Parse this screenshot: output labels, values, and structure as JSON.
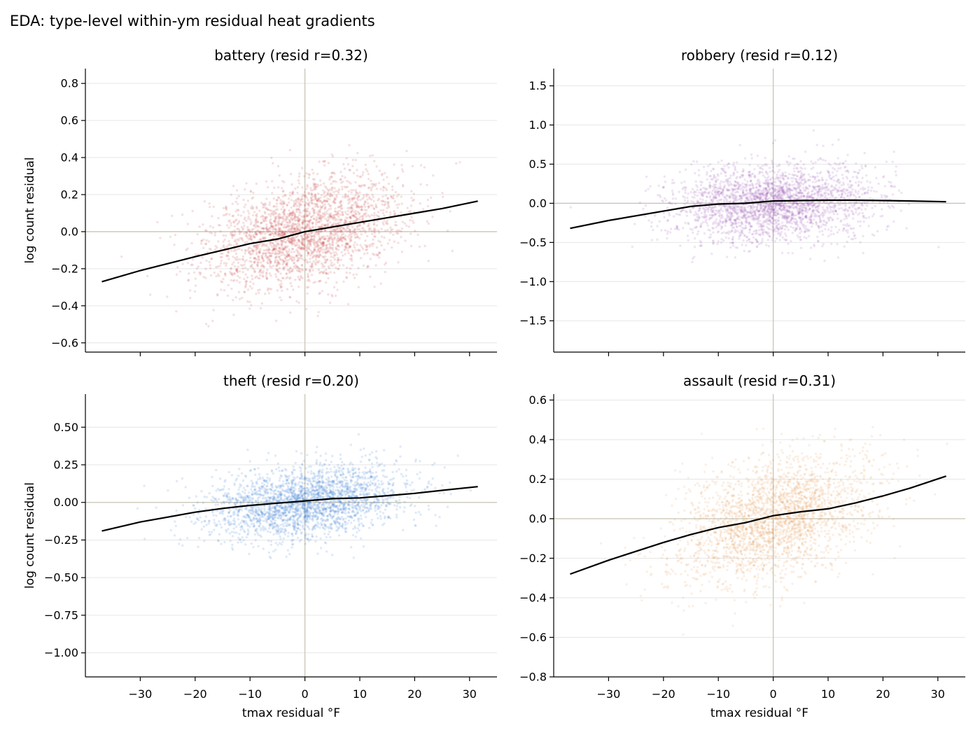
{
  "title": "EDA: type-level within-ym residual heat gradients",
  "colors": {
    "battery": "#c94040",
    "robbery": "#9b59b6",
    "theft": "#3a7bd5",
    "assault": "#e89a5a",
    "trend": "#000000",
    "crosshair": "#c8c4b4",
    "grid": "#e6e6e6"
  },
  "chart_data": [
    {
      "type": "scatter",
      "title": "battery (resid r=0.32)",
      "xlabel": "",
      "ylabel": "log count residual",
      "xlim": [
        -40,
        35
      ],
      "ylim": [
        -0.65,
        0.88
      ],
      "xticks": [
        -30,
        -20,
        -10,
        0,
        10,
        20,
        30
      ],
      "xtick_labels_shown": false,
      "yticks": [
        -0.6,
        -0.4,
        -0.2,
        0.0,
        0.2,
        0.4,
        0.6,
        0.8
      ],
      "ytick_labels": [
        "−0.6",
        "−0.4",
        "−0.2",
        "0.0",
        "0.2",
        "0.4",
        "0.6",
        "0.8"
      ],
      "grid": "y",
      "points_summary": {
        "n": 2600,
        "x_mean": 0,
        "x_sd": 9,
        "slope": 0.0062,
        "y_sd": 0.14
      },
      "trend_line": {
        "x": [
          -37,
          -30,
          -20,
          -15,
          -10,
          -5,
          0,
          5,
          10,
          15,
          20,
          25,
          31.5
        ],
        "y": [
          -0.27,
          -0.21,
          -0.135,
          -0.1,
          -0.065,
          -0.04,
          0.0,
          0.025,
          0.05,
          0.075,
          0.1,
          0.125,
          0.165
        ]
      }
    },
    {
      "type": "scatter",
      "title": "robbery (resid r=0.12)",
      "xlabel": "",
      "ylabel": "",
      "xlim": [
        -40,
        35
      ],
      "ylim": [
        -1.9,
        1.72
      ],
      "xticks": [
        -30,
        -20,
        -10,
        0,
        10,
        20,
        30
      ],
      "xtick_labels_shown": false,
      "yticks": [
        -1.5,
        -1.0,
        -0.5,
        0.0,
        0.5,
        1.0,
        1.5
      ],
      "ytick_labels": [
        "−1.5",
        "−1.0",
        "−0.5",
        "0.0",
        "0.5",
        "1.0",
        "1.5"
      ],
      "grid": "y",
      "points_summary": {
        "n": 2600,
        "x_mean": 0,
        "x_sd": 9,
        "slope": 0.003,
        "y_sd": 0.24
      },
      "trend_line": {
        "x": [
          -37,
          -30,
          -20,
          -15,
          -10,
          -5,
          0,
          5,
          10,
          15,
          20,
          25,
          31.5
        ],
        "y": [
          -0.32,
          -0.22,
          -0.1,
          -0.04,
          -0.01,
          0.0,
          0.03,
          0.035,
          0.04,
          0.04,
          0.035,
          0.03,
          0.02
        ]
      }
    },
    {
      "type": "scatter",
      "title": "theft (resid r=0.20)",
      "xlabel": "tmax residual °F",
      "ylabel": "log count residual",
      "xlim": [
        -40,
        35
      ],
      "ylim": [
        -1.16,
        0.72
      ],
      "xticks": [
        -30,
        -20,
        -10,
        0,
        10,
        20,
        30
      ],
      "xtick_labels": [
        "−30",
        "−20",
        "−10",
        "0",
        "10",
        "20",
        "30"
      ],
      "yticks": [
        -1.0,
        -0.75,
        -0.5,
        -0.25,
        0.0,
        0.25,
        0.5
      ],
      "ytick_labels": [
        "−1.00",
        "−0.75",
        "−0.50",
        "−0.25",
        "0.00",
        "0.25",
        "0.50"
      ],
      "grid": "y",
      "points_summary": {
        "n": 2600,
        "x_mean": 0,
        "x_sd": 9,
        "slope": 0.0035,
        "y_sd": 0.12
      },
      "trend_line": {
        "x": [
          -37,
          -30,
          -20,
          -15,
          -10,
          -5,
          0,
          5,
          10,
          15,
          20,
          25,
          31.5
        ],
        "y": [
          -0.19,
          -0.13,
          -0.065,
          -0.04,
          -0.02,
          -0.005,
          0.01,
          0.025,
          0.03,
          0.045,
          0.06,
          0.08,
          0.105
        ]
      }
    },
    {
      "type": "scatter",
      "title": "assault (resid r=0.31)",
      "xlabel": "tmax residual °F",
      "ylabel": "",
      "xlim": [
        -40,
        35
      ],
      "ylim": [
        -0.8,
        0.63
      ],
      "xticks": [
        -30,
        -20,
        -10,
        0,
        10,
        20,
        30
      ],
      "xtick_labels": [
        "−30",
        "−20",
        "−10",
        "0",
        "10",
        "20",
        "30"
      ],
      "yticks": [
        -0.8,
        -0.6,
        -0.4,
        -0.2,
        0.0,
        0.2,
        0.4,
        0.6
      ],
      "ytick_labels": [
        "−0.8",
        "−0.6",
        "−0.4",
        "−0.2",
        "0.0",
        "0.2",
        "0.4",
        "0.6"
      ],
      "grid": "y",
      "points_summary": {
        "n": 2600,
        "x_mean": 0,
        "x_sd": 9,
        "slope": 0.0072,
        "y_sd": 0.15
      },
      "trend_line": {
        "x": [
          -37,
          -30,
          -20,
          -15,
          -10,
          -5,
          0,
          5,
          10,
          15,
          20,
          25,
          31.5
        ],
        "y": [
          -0.28,
          -0.21,
          -0.12,
          -0.08,
          -0.045,
          -0.02,
          0.015,
          0.035,
          0.05,
          0.08,
          0.115,
          0.155,
          0.215
        ]
      }
    }
  ]
}
